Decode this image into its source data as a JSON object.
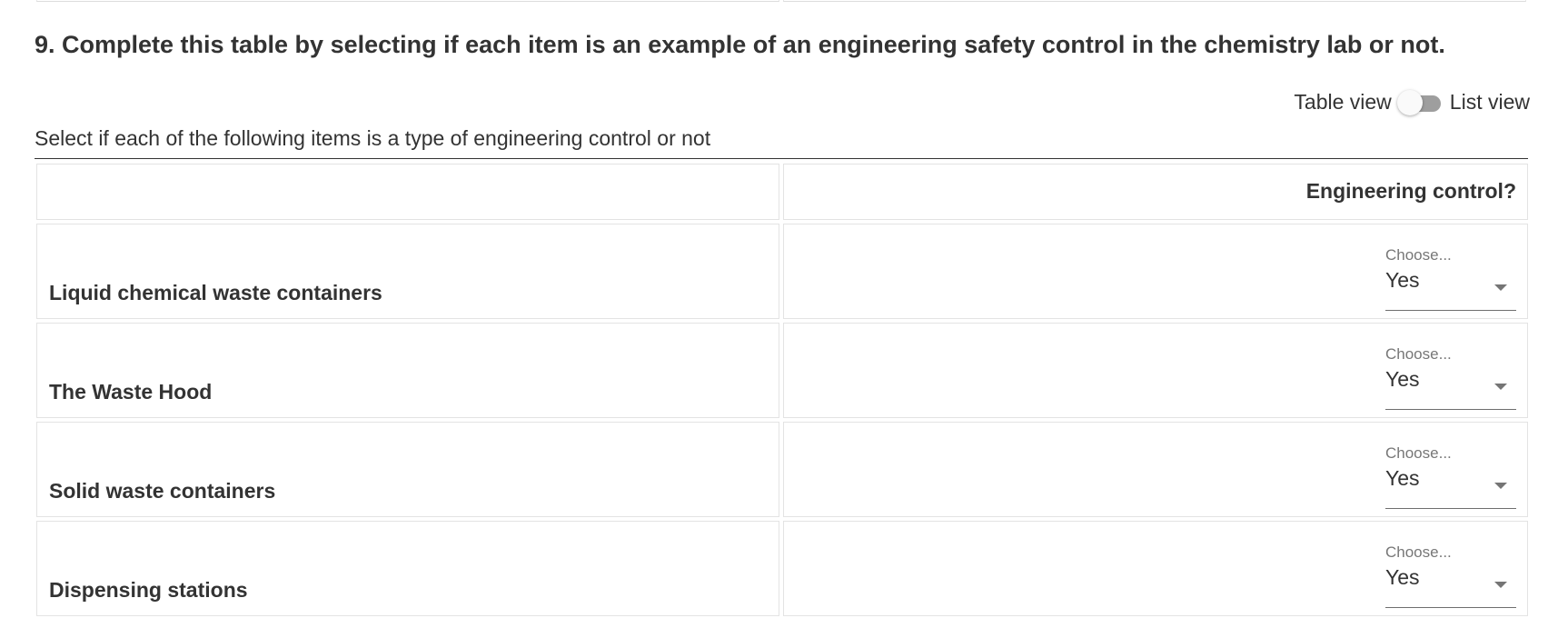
{
  "question": {
    "title": "9. Complete this table by selecting if each item is an example of an engineering safety control in the chemistry lab or not.",
    "instruction": "Select if each of the following items is a type of engineering control or not"
  },
  "view_toggle": {
    "left_label": "Table view",
    "right_label": "List view",
    "state": "table"
  },
  "table": {
    "column_header": "Engineering control?",
    "rows": [
      {
        "item": "Liquid chemical waste containers",
        "placeholder": "Choose...",
        "value": "Yes"
      },
      {
        "item": "The Waste Hood",
        "placeholder": "Choose...",
        "value": "Yes"
      },
      {
        "item": "Solid waste containers",
        "placeholder": "Choose...",
        "value": "Yes"
      },
      {
        "item": "Dispensing stations",
        "placeholder": "Choose...",
        "value": "Yes"
      }
    ]
  },
  "colors": {
    "text": "#333333",
    "border": "#e3e3e3",
    "switch_track": "#9e9e9e"
  },
  "icons": {
    "toggle": "switch-toggle-icon",
    "dropdown": "caret-down-icon"
  }
}
